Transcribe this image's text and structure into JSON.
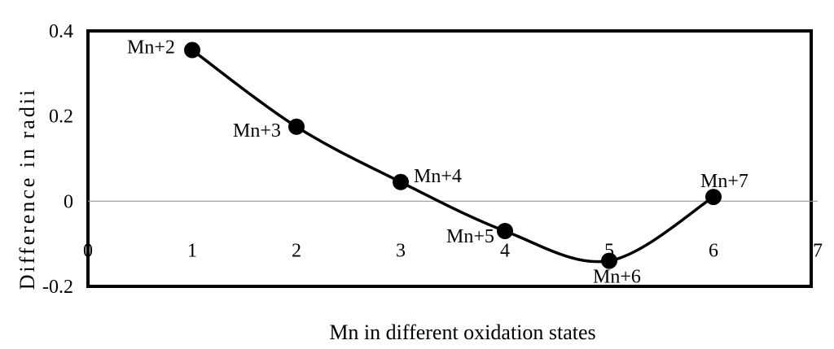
{
  "chart_data": {
    "type": "line",
    "title": "",
    "xlabel": "Mn in different oxidation states",
    "ylabel": "Difference in radii",
    "xlim": [
      0,
      7
    ],
    "ylim": [
      -0.2,
      0.4
    ],
    "x_ticks": [
      "0",
      "1",
      "2",
      "3",
      "4",
      "5",
      "6",
      "7"
    ],
    "y_ticks": [
      "0.4",
      "0.2",
      "0",
      "-0.2"
    ],
    "grid": false,
    "smooth": true,
    "legend": "none",
    "series": [
      {
        "x": [
          1,
          2,
          3,
          4,
          5,
          6
        ],
        "values": [
          0.355,
          0.175,
          0.045,
          -0.07,
          -0.14,
          0.01
        ],
        "point_labels": [
          "Mn+2",
          "Mn+3",
          "Mn+4",
          "Mn+5",
          "Mn+6",
          "Mn+7"
        ]
      }
    ],
    "colors": {
      "line": "#000000",
      "marker": "#000000",
      "frame": "#000000",
      "zero_line": "#9a9a9a"
    }
  }
}
